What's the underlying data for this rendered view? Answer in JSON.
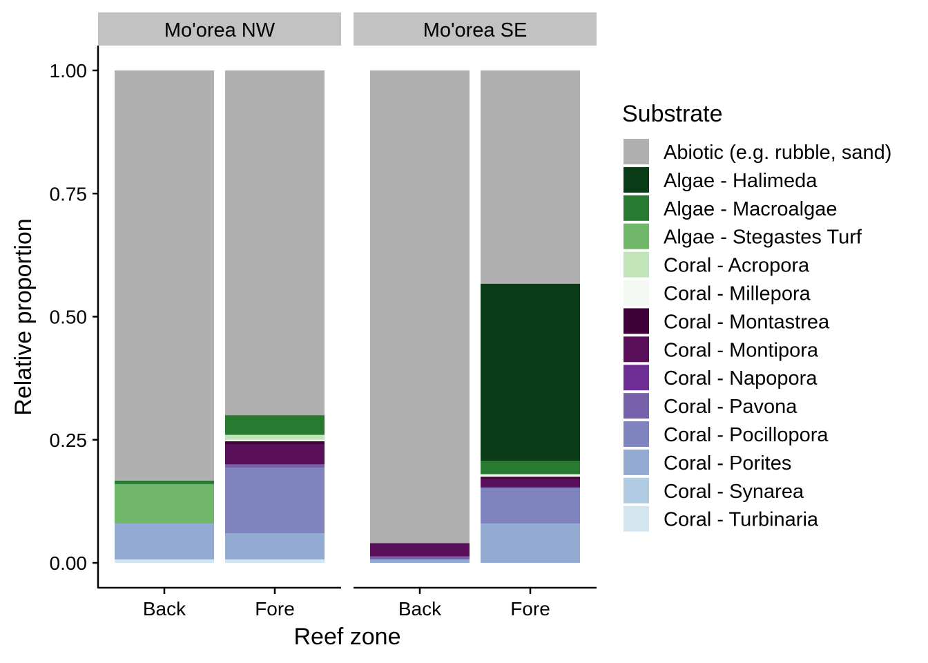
{
  "chart_data": {
    "type": "bar",
    "stacked": true,
    "xlabel": "Reef zone",
    "ylabel": "Relative proportion",
    "ylim": [
      0,
      1
    ],
    "yticks": [
      0,
      0.25,
      0.5,
      0.75,
      1
    ],
    "ytick_labels": [
      "0.00",
      "0.25",
      "0.50",
      "0.75",
      "1.00"
    ],
    "categories": [
      "Back",
      "Fore"
    ],
    "grid": false,
    "legend": {
      "title": "Substrate",
      "position": "right",
      "entries": [
        {
          "name": "Abiotic (e.g. rubble, sand)",
          "color": "#b0b0b0"
        },
        {
          "name": "Algae - Halimeda",
          "color": "#083b16"
        },
        {
          "name": "Algae - Macroalgae",
          "color": "#277a30"
        },
        {
          "name": "Algae - Stegastes Turf",
          "color": "#70b769"
        },
        {
          "name": "Coral - Acropora",
          "color": "#c1e5b8"
        },
        {
          "name": "Coral - Millepora",
          "color": "#f3f8f2"
        },
        {
          "name": "Coral - Montastrea",
          "color": "#3f0038"
        },
        {
          "name": "Coral - Montipora",
          "color": "#590f5a"
        },
        {
          "name": "Coral - Napopora",
          "color": "#6f2e96"
        },
        {
          "name": "Coral - Pavona",
          "color": "#7861ab"
        },
        {
          "name": "Coral - Pocillopora",
          "color": "#7f84bf"
        },
        {
          "name": "Coral - Porites",
          "color": "#93aad2"
        },
        {
          "name": "Coral - Synarea",
          "color": "#b1cbe3"
        },
        {
          "name": "Coral - Turbinaria",
          "color": "#d3e5ef"
        }
      ]
    },
    "panels": [
      {
        "title": "Mo'orea NW",
        "bars": [
          {
            "category": "Back",
            "segments": [
              {
                "substrate": "Coral - Turbinaria",
                "value": 0.007
              },
              {
                "substrate": "Coral - Porites",
                "value": 0.073
              },
              {
                "substrate": "Algae - Stegastes Turf",
                "value": 0.08
              },
              {
                "substrate": "Algae - Macroalgae",
                "value": 0.007
              },
              {
                "substrate": "Abiotic (e.g. rubble, sand)",
                "value": 0.833
              }
            ]
          },
          {
            "category": "Fore",
            "segments": [
              {
                "substrate": "Coral - Turbinaria",
                "value": 0.007
              },
              {
                "substrate": "Coral - Porites",
                "value": 0.053
              },
              {
                "substrate": "Coral - Pocillopora",
                "value": 0.133
              },
              {
                "substrate": "Coral - Pavona",
                "value": 0.007
              },
              {
                "substrate": "Coral - Montipora",
                "value": 0.04
              },
              {
                "substrate": "Coral - Montastrea",
                "value": 0.007
              },
              {
                "substrate": "Coral - Millepora",
                "value": 0.003
              },
              {
                "substrate": "Coral - Acropora",
                "value": 0.01
              },
              {
                "substrate": "Algae - Macroalgae",
                "value": 0.04
              },
              {
                "substrate": "Abiotic (e.g. rubble, sand)",
                "value": 0.7
              }
            ]
          }
        ]
      },
      {
        "title": "Mo'orea SE",
        "bars": [
          {
            "category": "Back",
            "segments": [
              {
                "substrate": "Coral - Porites",
                "value": 0.007
              },
              {
                "substrate": "Coral - Pavona",
                "value": 0.006
              },
              {
                "substrate": "Coral - Montipora",
                "value": 0.027
              },
              {
                "substrate": "Abiotic (e.g. rubble, sand)",
                "value": 0.96
              }
            ]
          },
          {
            "category": "Fore",
            "segments": [
              {
                "substrate": "Coral - Porites",
                "value": 0.08
              },
              {
                "substrate": "Coral - Pocillopora",
                "value": 0.073
              },
              {
                "substrate": "Coral - Montipora",
                "value": 0.017
              },
              {
                "substrate": "Coral - Montastrea",
                "value": 0.005
              },
              {
                "substrate": "Coral - Millepora",
                "value": 0.005
              },
              {
                "substrate": "Algae - Macroalgae",
                "value": 0.027
              },
              {
                "substrate": "Algae - Halimeda",
                "value": 0.36
              },
              {
                "substrate": "Abiotic (e.g. rubble, sand)",
                "value": 0.433
              }
            ]
          }
        ]
      }
    ]
  }
}
